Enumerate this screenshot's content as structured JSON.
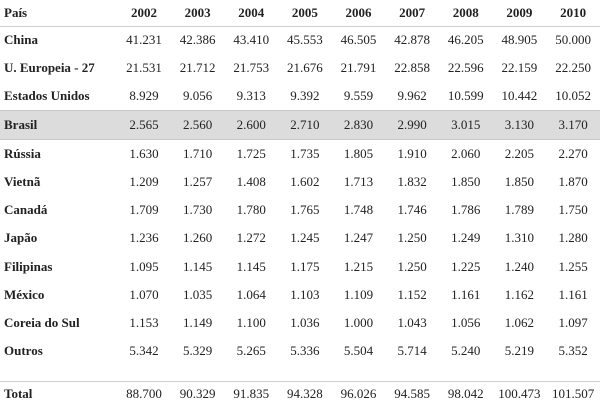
{
  "table": {
    "country_header": "País",
    "years": [
      "2002",
      "2003",
      "2004",
      "2005",
      "2006",
      "2007",
      "2008",
      "2009",
      "2010"
    ],
    "rows": [
      {
        "country": "China",
        "values": [
          "41.231",
          "42.386",
          "43.410",
          "45.553",
          "46.505",
          "42.878",
          "46.205",
          "48.905",
          "50.000"
        ]
      },
      {
        "country": "U. Europeia - 27",
        "values": [
          "21.531",
          "21.712",
          "21.753",
          "21.676",
          "21.791",
          "22.858",
          "22.596",
          "22.159",
          "22.250"
        ]
      },
      {
        "country": "Estados Unidos",
        "values": [
          "8.929",
          "9.056",
          "9.313",
          "9.392",
          "9.559",
          "9.962",
          "10.599",
          "10.442",
          "10.052"
        ]
      },
      {
        "country": "Brasil",
        "values": [
          "2.565",
          "2.560",
          "2.600",
          "2.710",
          "2.830",
          "2.990",
          "3.015",
          "3.130",
          "3.170"
        ],
        "highlight": true
      },
      {
        "country": "Rússia",
        "values": [
          "1.630",
          "1.710",
          "1.725",
          "1.735",
          "1.805",
          "1.910",
          "2.060",
          "2.205",
          "2.270"
        ]
      },
      {
        "country": "Vietnã",
        "values": [
          "1.209",
          "1.257",
          "1.408",
          "1.602",
          "1.713",
          "1.832",
          "1.850",
          "1.850",
          "1.870"
        ]
      },
      {
        "country": "Canadá",
        "values": [
          "1.709",
          "1.730",
          "1.780",
          "1.765",
          "1.748",
          "1.746",
          "1.786",
          "1.789",
          "1.750"
        ]
      },
      {
        "country": "Japão",
        "values": [
          "1.236",
          "1.260",
          "1.272",
          "1.245",
          "1.247",
          "1.250",
          "1.249",
          "1.310",
          "1.280"
        ]
      },
      {
        "country": "Filipinas",
        "values": [
          "1.095",
          "1.145",
          "1.145",
          "1.175",
          "1.215",
          "1.250",
          "1.225",
          "1.240",
          "1.255"
        ]
      },
      {
        "country": "México",
        "values": [
          "1.070",
          "1.035",
          "1.064",
          "1.103",
          "1.109",
          "1.152",
          "1.161",
          "1.162",
          "1.161"
        ]
      },
      {
        "country": "Coreia do Sul",
        "values": [
          "1.153",
          "1.149",
          "1.100",
          "1.036",
          "1.000",
          "1.043",
          "1.056",
          "1.062",
          "1.097"
        ]
      },
      {
        "country": "Outros",
        "values": [
          "5.342",
          "5.329",
          "5.265",
          "5.336",
          "5.504",
          "5.714",
          "5.240",
          "5.219",
          "5.352"
        ]
      }
    ],
    "total": {
      "country": "Total",
      "values": [
        "88.700",
        "90.329",
        "91.835",
        "94.328",
        "96.026",
        "94.585",
        "98.042",
        "100.473",
        "101.507"
      ]
    },
    "highlight_color": "#dcdcdc"
  }
}
